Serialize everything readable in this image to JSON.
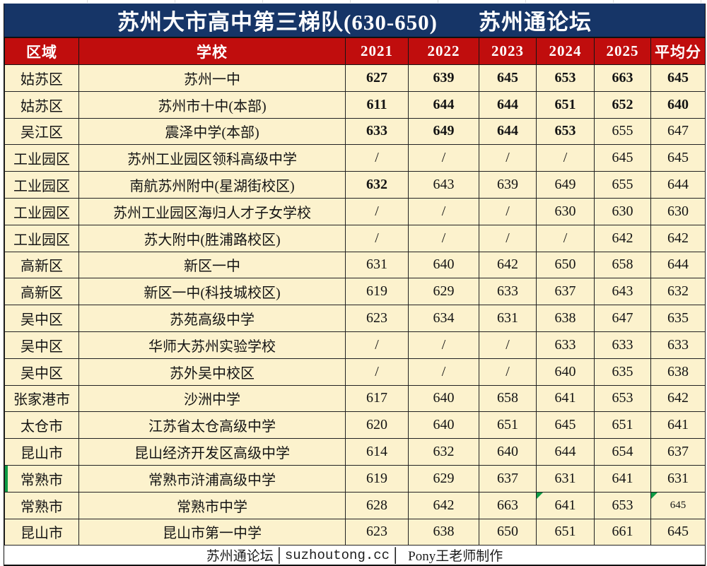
{
  "colors": {
    "navy_header": "#163567",
    "red_header": "#c00d0d",
    "cream_row": "#fcf2cd",
    "green_marker": "#0d9b44",
    "border": "#222222"
  },
  "title": {
    "main": "苏州大市高中第三梯队(630-650)",
    "brand": "苏州通论坛"
  },
  "columns": [
    "区域",
    "学校",
    "2021",
    "2022",
    "2023",
    "2024",
    "2025",
    "平均分"
  ],
  "rows": [
    {
      "region": "姑苏区",
      "school": "苏州一中",
      "scores": [
        "627",
        "639",
        "645",
        "653",
        "663",
        "645"
      ],
      "bold": [
        1,
        1,
        1,
        1,
        1,
        1
      ]
    },
    {
      "region": "姑苏区",
      "school": "苏州市十中(本部)",
      "scores": [
        "611",
        "644",
        "644",
        "651",
        "652",
        "640"
      ],
      "bold": [
        1,
        1,
        1,
        1,
        1,
        1
      ]
    },
    {
      "region": "吴江区",
      "school": "震泽中学(本部)",
      "scores": [
        "633",
        "649",
        "644",
        "653",
        "655",
        "647"
      ],
      "bold": [
        1,
        1,
        1,
        1,
        0,
        0
      ]
    },
    {
      "region": "工业园区",
      "school": "苏州工业园区领科高级中学",
      "scores": [
        "/",
        "/",
        "/",
        "/",
        "645",
        "645"
      ]
    },
    {
      "region": "工业园区",
      "school": "南航苏州附中(星湖街校区)",
      "scores": [
        "632",
        "643",
        "639",
        "649",
        "655",
        "644"
      ],
      "bold": [
        1,
        0,
        0,
        0,
        0,
        0
      ]
    },
    {
      "region": "工业园区",
      "school": "苏州工业园区海归人才子女学校",
      "scores": [
        "/",
        "/",
        "/",
        "630",
        "630",
        "630"
      ]
    },
    {
      "region": "工业园区",
      "school": "苏大附中(胜浦路校区)",
      "scores": [
        "/",
        "/",
        "/",
        "/",
        "642",
        "642"
      ]
    },
    {
      "region": "高新区",
      "school": "新区一中",
      "scores": [
        "631",
        "640",
        "642",
        "650",
        "658",
        "644"
      ]
    },
    {
      "region": "高新区",
      "school": "新区一中(科技城校区)",
      "scores": [
        "619",
        "629",
        "633",
        "637",
        "643",
        "632"
      ]
    },
    {
      "region": "吴中区",
      "school": "苏苑高级中学",
      "scores": [
        "623",
        "634",
        "631",
        "638",
        "647",
        "635"
      ]
    },
    {
      "region": "吴中区",
      "school": "华师大苏州实验学校",
      "scores": [
        "/",
        "/",
        "/",
        "633",
        "633",
        "633"
      ]
    },
    {
      "region": "吴中区",
      "school": "苏外吴中校区",
      "scores": [
        "/",
        "/",
        "/",
        "640",
        "635",
        "638"
      ]
    },
    {
      "region": "张家港市",
      "school": "沙洲中学",
      "scores": [
        "617",
        "640",
        "658",
        "641",
        "653",
        "642"
      ]
    },
    {
      "region": "太仓市",
      "school": "江苏省太仓高级中学",
      "scores": [
        "620",
        "640",
        "651",
        "645",
        "651",
        "641"
      ]
    },
    {
      "region": "昆山市",
      "school": "昆山经济开发区高级中学",
      "scores": [
        "614",
        "632",
        "640",
        "644",
        "654",
        "637"
      ]
    },
    {
      "region": "常熟市",
      "school": "常熟市浒浦高级中学",
      "scores": [
        "619",
        "629",
        "637",
        "631",
        "641",
        "631"
      ],
      "green_left": true
    },
    {
      "region": "常熟市",
      "school": "常熟市中学",
      "scores": [
        "628",
        "642",
        "663",
        "641",
        "653",
        "645"
      ],
      "green_corner": [
        3,
        5
      ],
      "small": [
        5
      ]
    },
    {
      "region": "昆山市",
      "school": "昆山市第一中学",
      "scores": [
        "623",
        "638",
        "650",
        "651",
        "661",
        "645"
      ]
    }
  ],
  "footer": {
    "site": "苏州通论坛",
    "sep": "│",
    "domain": "suzhoutong.cc",
    "author": "Pony王老师制作"
  }
}
